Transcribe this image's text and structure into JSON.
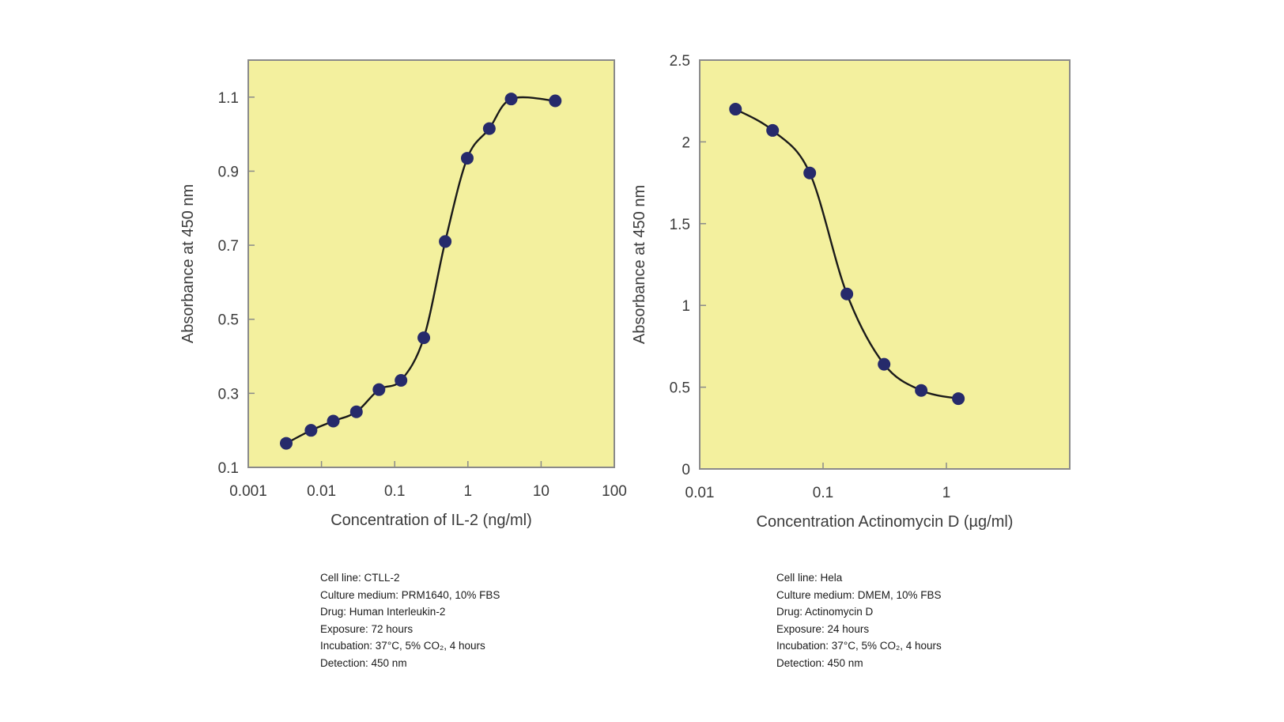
{
  "colors": {
    "plot_background": "#f3f09e",
    "frame": "#8a8a8a",
    "curve": "#1a1a1a",
    "marker": "#262a6b",
    "text": "#3b3b3b"
  },
  "chart_data": [
    {
      "type": "line",
      "xscale": "log",
      "xlabel": "Concentration of IL-2 (ng/ml)",
      "ylabel": "Absorbance at 450 nm",
      "xlim": [
        0.001,
        100
      ],
      "ylim": [
        0.1,
        1.2
      ],
      "xticks": [
        0.001,
        0.01,
        0.1,
        1,
        10,
        100
      ],
      "xticklabels": [
        "0.001",
        "0.01",
        "0.1",
        "1",
        "10",
        "100"
      ],
      "yticks": [
        0.1,
        0.3,
        0.5,
        0.7,
        0.9,
        1.1
      ],
      "yticklabels": [
        "0.1",
        "0.3",
        "0.5",
        "0.7",
        "0.9",
        "1.1"
      ],
      "grid": false,
      "series": [
        {
          "x": [
            0.0033,
            0.0072,
            0.0145,
            0.03,
            0.061,
            0.122,
            0.25,
            0.49,
            0.98,
            1.96,
            3.9,
            15.6
          ],
          "y": [
            0.165,
            0.2,
            0.225,
            0.25,
            0.31,
            0.335,
            0.45,
            0.71,
            0.935,
            1.015,
            1.095,
            1.09
          ]
        }
      ]
    },
    {
      "type": "line",
      "xscale": "log",
      "xlabel": "Concentration Actinomycin D (µg/ml)",
      "ylabel": "Absorbance at 450 nm",
      "xlim": [
        0.01,
        10
      ],
      "ylim": [
        0,
        2.5
      ],
      "xticks": [
        0.01,
        0.1,
        1
      ],
      "xticklabels": [
        "0.01",
        "0.1",
        "1"
      ],
      "yticks": [
        0,
        0.5,
        1,
        1.5,
        2,
        2.5
      ],
      "yticklabels": [
        "0",
        "0.5",
        "1",
        "1.5",
        "2",
        "2.5"
      ],
      "grid": false,
      "series": [
        {
          "x": [
            0.0195,
            0.039,
            0.078,
            0.156,
            0.3125,
            0.625,
            1.25
          ],
          "y": [
            2.2,
            2.07,
            1.81,
            1.07,
            0.64,
            0.48,
            0.43
          ]
        }
      ]
    }
  ],
  "notes": [
    {
      "lines": [
        "Cell line: CTLL-2",
        "Culture medium: PRM1640, 10% FBS",
        "Drug: Human Interleukin-2",
        "Exposure: 72 hours",
        "Incubation: 37°C, 5% CO₂, 4 hours",
        "Detection: 450 nm"
      ]
    },
    {
      "lines": [
        "Cell line: Hela",
        "Culture medium: DMEM, 10% FBS",
        "Drug: Actinomycin D",
        "Exposure: 24 hours",
        "Incubation: 37°C, 5% CO₂, 4 hours",
        "Detection: 450 nm"
      ]
    }
  ]
}
